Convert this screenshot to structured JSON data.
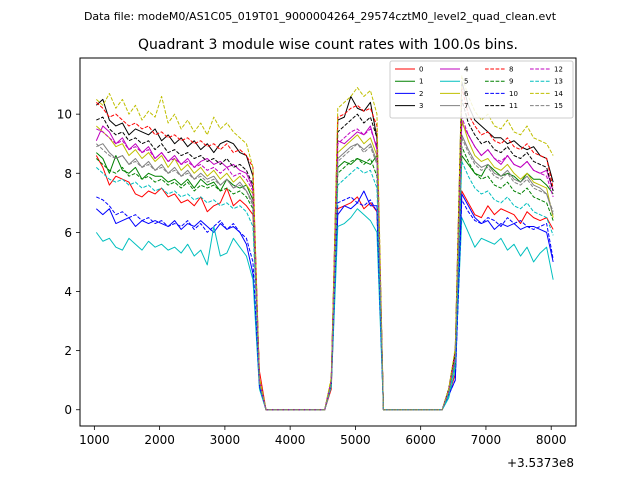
{
  "suptitle": "Data file: modeM0/AS1C05_019T01_9000004264_29574cztM0_level2_quad_clean.evt",
  "chart_data": {
    "type": "line",
    "title": "Quadrant 3 module wise count rates with 100.0s bins.",
    "xlabel": "",
    "ylabel": "",
    "x_offset_label": "+3.5373e8",
    "xlim": [
      780,
      8380
    ],
    "ylim": [
      -0.55,
      11.9
    ],
    "xticks": [
      1000,
      2000,
      3000,
      4000,
      5000,
      6000,
      7000,
      8000
    ],
    "yticks": [
      0,
      2,
      4,
      6,
      8,
      10
    ],
    "legend_position": "upper-right",
    "x": [
      1030,
      1130,
      1230,
      1330,
      1430,
      1530,
      1630,
      1730,
      1830,
      1930,
      2030,
      2130,
      2230,
      2330,
      2430,
      2530,
      2630,
      2730,
      2830,
      2930,
      3030,
      3130,
      3230,
      3330,
      3430,
      3530,
      3630,
      3730,
      3830,
      3930,
      4030,
      4130,
      4230,
      4330,
      4430,
      4530,
      4630,
      4730,
      4830,
      4930,
      5030,
      5130,
      5230,
      5330,
      5430,
      5530,
      5630,
      5730,
      5830,
      5930,
      6030,
      6130,
      6230,
      6330,
      6430,
      6530,
      6630,
      6730,
      6830,
      6930,
      7030,
      7130,
      7230,
      7330,
      7430,
      7530,
      7630,
      7730,
      7830,
      7930,
      8030
    ],
    "series": [
      {
        "name": "0",
        "color": "#ff0000",
        "dash": "solid",
        "values": [
          8.6,
          8.2,
          7.6,
          7.9,
          7.8,
          7.7,
          7.3,
          7.2,
          7.4,
          7.3,
          7.5,
          7.2,
          7.3,
          7.0,
          7.1,
          6.9,
          7.2,
          6.7,
          6.9,
          7.0,
          7.5,
          6.9,
          7.1,
          6.9,
          6.6,
          1.3,
          0,
          0,
          0,
          0,
          0,
          0,
          0,
          0,
          0,
          0,
          0.7,
          6.8,
          6.9,
          7.0,
          7.2,
          6.8,
          7.0,
          6.7,
          0,
          0,
          0,
          0,
          0,
          0,
          0,
          0,
          0,
          0,
          0.5,
          1.2,
          7.4,
          7.0,
          6.6,
          6.5,
          6.9,
          6.6,
          6.8,
          6.7,
          6.6,
          6.3,
          6.7,
          6.5,
          6.4,
          6.5,
          6.1
        ]
      },
      {
        "name": "1",
        "color": "#008000",
        "dash": "solid",
        "values": [
          8.7,
          8.5,
          8.0,
          8.6,
          8.1,
          8.0,
          8.2,
          7.8,
          8.0,
          7.9,
          7.9,
          7.7,
          7.8,
          7.6,
          7.8,
          7.5,
          7.8,
          7.6,
          7.7,
          7.4,
          7.8,
          7.6,
          7.5,
          7.6,
          7.1,
          1.0,
          0,
          0,
          0,
          0,
          0,
          0,
          0,
          0,
          0,
          0,
          0.9,
          8.2,
          8.4,
          8.3,
          8.5,
          8.4,
          8.3,
          8.6,
          0,
          0,
          0,
          0,
          0,
          0,
          0,
          0,
          0,
          0,
          0.6,
          1.7,
          8.6,
          8.3,
          8.0,
          7.9,
          8.3,
          8.1,
          7.9,
          8.0,
          7.9,
          7.7,
          8.0,
          7.8,
          7.8,
          7.6,
          7.3
        ]
      },
      {
        "name": "2",
        "color": "#0000ff",
        "dash": "solid",
        "values": [
          6.8,
          6.6,
          6.8,
          6.3,
          6.4,
          6.5,
          6.2,
          6.4,
          6.3,
          6.4,
          6.3,
          6.2,
          6.4,
          6.1,
          6.3,
          6.2,
          6.4,
          6.2,
          6.0,
          6.3,
          6.1,
          6.2,
          6.0,
          5.6,
          4.6,
          0.8,
          0,
          0,
          0,
          0,
          0,
          0,
          0,
          0,
          0,
          0,
          0.9,
          6.6,
          6.9,
          6.8,
          7.0,
          7.4,
          6.9,
          6.9,
          0,
          0,
          0,
          0,
          0,
          0,
          0,
          0,
          0,
          0,
          0.5,
          1.0,
          7.3,
          6.9,
          6.5,
          6.3,
          6.4,
          6.1,
          6.3,
          6.2,
          6.3,
          6.1,
          6.2,
          6.2,
          6.1,
          6.0,
          5.0
        ]
      },
      {
        "name": "3",
        "color": "#000000",
        "dash": "solid",
        "values": [
          10.3,
          10.5,
          9.8,
          9.6,
          9.7,
          9.3,
          9.5,
          9.4,
          9.3,
          9.5,
          9.1,
          9.3,
          9.0,
          9.2,
          8.9,
          9.1,
          8.8,
          9.0,
          8.7,
          9.0,
          9.1,
          9.0,
          8.7,
          8.6,
          7.9,
          1.0,
          0,
          0,
          0,
          0,
          0,
          0,
          0,
          0,
          0,
          0,
          1.0,
          9.8,
          9.9,
          10.6,
          10.2,
          10.1,
          10.4,
          9.2,
          0,
          0,
          0,
          0,
          0,
          0,
          0,
          0,
          0,
          0,
          0.7,
          2.0,
          11.1,
          10.3,
          9.8,
          9.6,
          9.4,
          9.2,
          9.2,
          9.0,
          9.1,
          8.9,
          8.8,
          8.9,
          8.6,
          8.5,
          7.7
        ]
      },
      {
        "name": "4",
        "color": "#bf00bf",
        "dash": "solid",
        "values": [
          9.1,
          9.6,
          9.4,
          9.0,
          9.2,
          8.8,
          9.0,
          8.7,
          8.9,
          8.5,
          8.7,
          8.4,
          8.6,
          8.3,
          8.5,
          8.2,
          8.4,
          8.5,
          8.3,
          8.4,
          8.2,
          8.3,
          8.1,
          8.0,
          7.5,
          1.0,
          0,
          0,
          0,
          0,
          0,
          0,
          0,
          0,
          0,
          0,
          0.9,
          9.1,
          9.0,
          9.2,
          9.4,
          9.3,
          9.6,
          8.8,
          0,
          0,
          0,
          0,
          0,
          0,
          0,
          0,
          0,
          0,
          0.6,
          1.9,
          9.7,
          9.3,
          8.9,
          8.6,
          8.8,
          8.5,
          8.3,
          8.6,
          8.3,
          8.2,
          8.4,
          8.1,
          8.0,
          8.1,
          7.4
        ]
      },
      {
        "name": "5",
        "color": "#00bfbf",
        "dash": "solid",
        "values": [
          6.0,
          5.7,
          5.8,
          5.5,
          5.4,
          5.8,
          5.6,
          5.4,
          5.7,
          5.5,
          5.6,
          5.4,
          5.5,
          5.3,
          5.6,
          5.2,
          5.4,
          4.9,
          6.2,
          5.2,
          5.3,
          5.8,
          5.5,
          5.2,
          4.4,
          0.7,
          0,
          0,
          0,
          0,
          0,
          0,
          0,
          0,
          0,
          0,
          0.8,
          6.2,
          6.3,
          6.5,
          6.8,
          6.6,
          6.4,
          6.0,
          0,
          0,
          0,
          0,
          0,
          0,
          0,
          0,
          0,
          0,
          0.4,
          1.4,
          6.5,
          6.0,
          5.5,
          5.8,
          5.7,
          5.6,
          5.8,
          5.4,
          5.6,
          5.2,
          5.5,
          5.0,
          5.3,
          5.5,
          4.4
        ]
      },
      {
        "name": "6",
        "color": "#bfbf00",
        "dash": "solid",
        "values": [
          9.6,
          9.4,
          9.2,
          8.9,
          9.0,
          8.6,
          8.8,
          8.5,
          8.7,
          8.4,
          8.6,
          8.2,
          8.5,
          8.1,
          8.3,
          8.0,
          8.2,
          7.9,
          8.1,
          7.8,
          8.0,
          7.7,
          7.9,
          7.6,
          7.3,
          1.0,
          0,
          0,
          0,
          0,
          0,
          0,
          0,
          0,
          0,
          0,
          1.0,
          8.7,
          8.9,
          9.1,
          9.3,
          9.0,
          9.2,
          8.6,
          0,
          0,
          0,
          0,
          0,
          0,
          0,
          0,
          0,
          0,
          0.6,
          1.8,
          9.8,
          9.1,
          8.6,
          8.4,
          8.5,
          8.2,
          8.1,
          8.3,
          8.0,
          7.8,
          8.0,
          7.7,
          7.6,
          7.5,
          6.5
        ]
      },
      {
        "name": "7",
        "color": "#808080",
        "dash": "solid",
        "values": [
          8.9,
          9.0,
          8.7,
          8.5,
          8.6,
          8.3,
          8.5,
          8.2,
          8.4,
          8.1,
          8.3,
          8.0,
          8.2,
          7.9,
          8.1,
          7.8,
          8.0,
          7.8,
          7.9,
          7.6,
          7.8,
          7.5,
          7.7,
          7.4,
          7.0,
          1.0,
          0,
          0,
          0,
          0,
          0,
          0,
          0,
          0,
          0,
          0,
          0.9,
          8.5,
          8.7,
          8.9,
          9.0,
          8.8,
          9.0,
          8.4,
          0,
          0,
          0,
          0,
          0,
          0,
          0,
          0,
          0,
          0,
          0.6,
          1.7,
          9.3,
          8.8,
          8.4,
          8.2,
          8.3,
          8.0,
          7.9,
          8.1,
          7.8,
          7.7,
          7.9,
          7.6,
          7.5,
          7.3,
          6.6
        ]
      },
      {
        "name": "8",
        "color": "#ff0000",
        "dash": "dashed",
        "values": [
          10.4,
          10.2,
          9.9,
          10.0,
          9.8,
          9.6,
          9.7,
          9.5,
          9.6,
          9.3,
          9.4,
          9.2,
          9.3,
          9.1,
          9.2,
          9.0,
          9.1,
          8.9,
          9.0,
          8.8,
          9.0,
          8.7,
          8.8,
          8.6,
          8.2,
          1.0,
          0,
          0,
          0,
          0,
          0,
          0,
          0,
          0,
          0,
          0,
          1.0,
          9.9,
          10.0,
          10.2,
          10.3,
          10.1,
          10.2,
          9.6,
          0,
          0,
          0,
          0,
          0,
          0,
          0,
          0,
          0,
          0,
          0.7,
          2.0,
          10.9,
          10.0,
          9.6,
          9.3,
          9.4,
          9.1,
          9.0,
          9.2,
          8.9,
          8.8,
          9.0,
          8.7,
          8.6,
          8.5,
          7.5
        ]
      },
      {
        "name": "9",
        "color": "#008000",
        "dash": "dashed",
        "values": [
          8.5,
          8.3,
          8.1,
          8.0,
          8.2,
          7.9,
          8.0,
          7.8,
          7.9,
          7.7,
          7.8,
          7.6,
          7.7,
          7.5,
          7.7,
          7.4,
          7.6,
          7.5,
          7.6,
          7.4,
          7.5,
          7.3,
          7.4,
          7.2,
          6.8,
          1.0,
          0,
          0,
          0,
          0,
          0,
          0,
          0,
          0,
          0,
          0,
          0.9,
          8.0,
          8.2,
          8.4,
          8.5,
          8.3,
          8.5,
          7.9,
          0,
          0,
          0,
          0,
          0,
          0,
          0,
          0,
          0,
          0,
          0.6,
          1.6,
          8.9,
          8.4,
          8.0,
          7.8,
          7.9,
          7.6,
          7.5,
          7.7,
          7.4,
          7.3,
          7.5,
          7.2,
          7.1,
          7.0,
          6.4
        ]
      },
      {
        "name": "10",
        "color": "#0000ff",
        "dash": "dashed",
        "values": [
          7.2,
          7.1,
          6.9,
          6.6,
          6.7,
          6.5,
          6.6,
          6.4,
          6.5,
          6.3,
          6.4,
          6.2,
          6.3,
          6.2,
          6.4,
          6.1,
          6.3,
          6.0,
          6.2,
          6.4,
          6.1,
          6.3,
          6.0,
          5.8,
          5.0,
          0.8,
          0,
          0,
          0,
          0,
          0,
          0,
          0,
          0,
          0,
          0,
          0.9,
          7.0,
          7.1,
          7.2,
          7.0,
          6.9,
          7.1,
          6.7,
          0,
          0,
          0,
          0,
          0,
          0,
          0,
          0,
          0,
          0,
          0.5,
          1.0,
          7.1,
          6.7,
          6.4,
          6.3,
          6.5,
          6.4,
          6.2,
          6.5,
          6.3,
          6.4,
          6.2,
          6.1,
          6.2,
          6.3,
          5.1
        ]
      },
      {
        "name": "11",
        "color": "#000000",
        "dash": "dashed",
        "values": [
          9.8,
          9.9,
          9.5,
          9.3,
          9.4,
          9.1,
          9.2,
          9.0,
          9.1,
          8.8,
          9.0,
          8.7,
          8.8,
          8.6,
          8.7,
          8.5,
          8.6,
          8.4,
          8.5,
          8.3,
          8.5,
          8.2,
          8.3,
          8.1,
          7.6,
          1.0,
          0,
          0,
          0,
          0,
          0,
          0,
          0,
          0,
          0,
          0,
          1.0,
          9.4,
          9.6,
          9.8,
          10.0,
          9.7,
          9.9,
          9.2,
          0,
          0,
          0,
          0,
          0,
          0,
          0,
          0,
          0,
          0,
          0.7,
          1.9,
          10.5,
          9.7,
          9.3,
          9.0,
          9.1,
          8.8,
          8.7,
          8.9,
          8.6,
          8.5,
          8.7,
          8.4,
          8.3,
          8.2,
          7.4
        ]
      },
      {
        "name": "12",
        "color": "#bf00bf",
        "dash": "dashed",
        "values": [
          9.5,
          9.4,
          9.2,
          9.0,
          9.1,
          8.8,
          8.9,
          8.7,
          8.8,
          8.5,
          8.7,
          8.4,
          8.5,
          8.3,
          8.4,
          8.2,
          8.3,
          8.1,
          8.2,
          8.0,
          8.2,
          7.9,
          8.0,
          7.8,
          7.4,
          1.0,
          0,
          0,
          0,
          0,
          0,
          0,
          0,
          0,
          0,
          0,
          1.0,
          9.0,
          9.2,
          9.4,
          9.5,
          9.3,
          9.5,
          8.9,
          0,
          0,
          0,
          0,
          0,
          0,
          0,
          0,
          0,
          0,
          0.6,
          1.8,
          9.9,
          9.3,
          8.9,
          8.6,
          8.8,
          8.5,
          8.4,
          8.6,
          8.3,
          8.2,
          8.4,
          8.1,
          8.0,
          7.9,
          7.2
        ]
      },
      {
        "name": "13",
        "color": "#00bfbf",
        "dash": "dashed",
        "values": [
          8.2,
          8.0,
          7.8,
          7.7,
          7.8,
          7.6,
          7.7,
          7.5,
          7.6,
          7.4,
          7.5,
          7.3,
          7.4,
          7.2,
          7.3,
          7.1,
          7.2,
          7.0,
          7.1,
          6.9,
          7.0,
          6.8,
          6.9,
          6.7,
          6.2,
          0.9,
          0,
          0,
          0,
          0,
          0,
          0,
          0,
          0,
          0,
          0,
          0.8,
          7.6,
          7.8,
          8.0,
          8.2,
          8.0,
          8.1,
          7.5,
          0,
          0,
          0,
          0,
          0,
          0,
          0,
          0,
          0,
          0,
          0.5,
          1.5,
          8.4,
          7.9,
          7.5,
          7.3,
          7.4,
          7.1,
          7.0,
          7.2,
          6.9,
          6.8,
          7.0,
          6.7,
          6.6,
          6.5,
          5.9
        ]
      },
      {
        "name": "14",
        "color": "#bfbf00",
        "dash": "dashed",
        "values": [
          10.5,
          10.3,
          10.7,
          10.2,
          10.5,
          10.0,
          10.3,
          9.8,
          10.1,
          9.9,
          10.6,
          9.7,
          10.0,
          9.5,
          9.8,
          9.4,
          9.7,
          9.3,
          9.9,
          9.5,
          9.7,
          9.4,
          9.2,
          9.0,
          8.2,
          1.1,
          0,
          0,
          0,
          0,
          0,
          0,
          0,
          0,
          0,
          0,
          1.1,
          10.2,
          10.4,
          10.6,
          10.9,
          10.6,
          10.8,
          10.0,
          0,
          0,
          0,
          0,
          0,
          0,
          0,
          0,
          0,
          0,
          0.7,
          2.1,
          11.3,
          10.6,
          10.1,
          9.8,
          10.0,
          9.6,
          9.5,
          9.8,
          9.4,
          9.3,
          9.6,
          9.2,
          9.1,
          9.0,
          8.6
        ]
      },
      {
        "name": "15",
        "color": "#808080",
        "dash": "dashed",
        "values": [
          9.0,
          8.8,
          8.6,
          8.5,
          8.6,
          8.3,
          8.4,
          8.2,
          8.3,
          8.1,
          8.2,
          8.0,
          8.1,
          7.9,
          8.0,
          7.8,
          7.9,
          7.7,
          7.8,
          7.6,
          7.8,
          7.5,
          7.6,
          7.4,
          6.9,
          0.9,
          0,
          0,
          0,
          0,
          0,
          0,
          0,
          0,
          0,
          0,
          0.9,
          8.4,
          8.6,
          8.8,
          9.0,
          8.7,
          8.9,
          8.3,
          0,
          0,
          0,
          0,
          0,
          0,
          0,
          0,
          0,
          0,
          0.6,
          1.7,
          9.2,
          8.7,
          8.3,
          8.1,
          8.2,
          7.9,
          7.8,
          8.0,
          7.7,
          7.6,
          7.8,
          7.5,
          7.4,
          7.3,
          6.7
        ]
      }
    ]
  }
}
